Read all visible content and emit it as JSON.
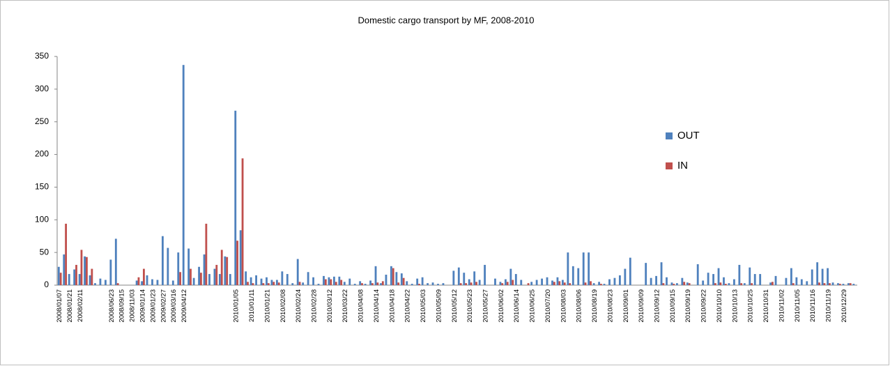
{
  "chart_data": {
    "type": "bar",
    "title": "Domestic cargo transport by MF, 2008-2010",
    "categories": [
      "2008/01/07",
      null,
      "2008/01/21",
      null,
      "2008/02/11",
      null,
      null,
      null,
      null,
      null,
      "2008/06/23",
      null,
      "2008/09/15",
      null,
      "2008/11/03",
      null,
      "2009/01/14",
      null,
      "2009/01/23",
      null,
      "2009/02/27",
      null,
      "2009/03/16",
      null,
      "2009/04/12",
      null,
      null,
      null,
      null,
      null,
      null,
      null,
      null,
      null,
      "2010/01/05",
      null,
      null,
      "2010/01/11",
      null,
      null,
      "2010/01/21",
      null,
      null,
      "2010/02/08",
      null,
      null,
      "2010/02/24",
      null,
      null,
      "2010/02/28",
      null,
      null,
      "2010/03/12",
      null,
      null,
      "2010/03/22",
      null,
      null,
      "2010/04/08",
      null,
      null,
      "2010/04/14",
      null,
      null,
      "2010/04/18",
      null,
      null,
      "2010/04/22",
      null,
      null,
      "2010/05/03",
      null,
      null,
      "2010/05/09",
      null,
      null,
      "2010/05/12",
      null,
      null,
      "2010/05/23",
      null,
      null,
      "2010/05/27",
      null,
      null,
      "2010/06/02",
      null,
      null,
      "2010/06/14",
      null,
      null,
      "2010/06/25",
      null,
      null,
      "2010/07/20",
      null,
      null,
      "2010/08/03",
      null,
      null,
      "2010/08/06",
      null,
      null,
      "2010/08/19",
      null,
      null,
      "2010/08/23",
      null,
      null,
      "2010/09/01",
      null,
      null,
      "2010/09/09",
      null,
      null,
      "2010/09/12",
      null,
      null,
      "2010/09/15",
      null,
      null,
      "2010/09/19",
      null,
      null,
      "2010/09/22",
      null,
      null,
      "2010/10/10",
      null,
      null,
      "2010/10/13",
      null,
      null,
      "2010/10/25",
      null,
      null,
      "2010/10/31",
      null,
      null,
      "2010/11/02",
      null,
      null,
      "2010/11/05",
      null,
      null,
      "2010/11/16",
      null,
      null,
      "2010/11/19",
      null,
      null,
      "2010/12/29",
      null,
      null
    ],
    "series": [
      {
        "name": "OUT",
        "color": "#4f81bd",
        "values": [
          28,
          47,
          17,
          24,
          17,
          44,
          15,
          3,
          10,
          8,
          39,
          71,
          0,
          0,
          0,
          7,
          6,
          15,
          9,
          8,
          75,
          57,
          7,
          50,
          337,
          56,
          11,
          28,
          47,
          17,
          25,
          17,
          44,
          17,
          267,
          84,
          21,
          12,
          15,
          10,
          12,
          8,
          8,
          21,
          17,
          3,
          40,
          4,
          20,
          12,
          2,
          14,
          12,
          13,
          13,
          5,
          10,
          2,
          6,
          2,
          7,
          29,
          3,
          16,
          29,
          20,
          18,
          6,
          2,
          10,
          12,
          3,
          4,
          2,
          3,
          0,
          22,
          27,
          19,
          9,
          21,
          8,
          31,
          0,
          10,
          5,
          9,
          25,
          17,
          8,
          0,
          5,
          8,
          10,
          12,
          7,
          12,
          8,
          50,
          29,
          26,
          50,
          50,
          3,
          5,
          2,
          9,
          11,
          15,
          25,
          42,
          0,
          0,
          34,
          11,
          14,
          35,
          12,
          4,
          3,
          11,
          4,
          0,
          32,
          7,
          19,
          17,
          26,
          12,
          3,
          9,
          31,
          3,
          27,
          17,
          17,
          0,
          4,
          14,
          0,
          11,
          26,
          12,
          9,
          6,
          24,
          35,
          25,
          26,
          4,
          3,
          2,
          3,
          2
        ]
      },
      {
        "name": "IN",
        "color": "#c0504d",
        "values": [
          19,
          94,
          0,
          31,
          54,
          43,
          25,
          0,
          0,
          0,
          0,
          3,
          0,
          0,
          0,
          12,
          25,
          0,
          0,
          0,
          0,
          0,
          0,
          20,
          0,
          25,
          0,
          19,
          94,
          0,
          31,
          54,
          43,
          0,
          68,
          194,
          5,
          3,
          0,
          3,
          3,
          5,
          4,
          0,
          0,
          0,
          5,
          0,
          0,
          0,
          0,
          9,
          9,
          5,
          8,
          0,
          0,
          0,
          3,
          0,
          3,
          4,
          6,
          0,
          26,
          4,
          11,
          0,
          0,
          2,
          0,
          0,
          0,
          0,
          0,
          0,
          0,
          3,
          3,
          4,
          5,
          0,
          0,
          0,
          0,
          3,
          5,
          8,
          0,
          0,
          3,
          0,
          0,
          0,
          0,
          5,
          6,
          4,
          3,
          0,
          0,
          4,
          6,
          0,
          2,
          0,
          0,
          0,
          0,
          0,
          0,
          0,
          0,
          0,
          0,
          0,
          3,
          0,
          2,
          0,
          5,
          3,
          0,
          0,
          0,
          0,
          3,
          4,
          2,
          0,
          0,
          3,
          0,
          3,
          0,
          0,
          0,
          5,
          0,
          0,
          0,
          3,
          0,
          0,
          0,
          0,
          4,
          3,
          3,
          0,
          2,
          0,
          3,
          0
        ]
      }
    ],
    "ylim": [
      0,
      350
    ],
    "yticks": [
      0,
      50,
      100,
      150,
      200,
      250,
      300,
      350
    ],
    "grid": false
  }
}
